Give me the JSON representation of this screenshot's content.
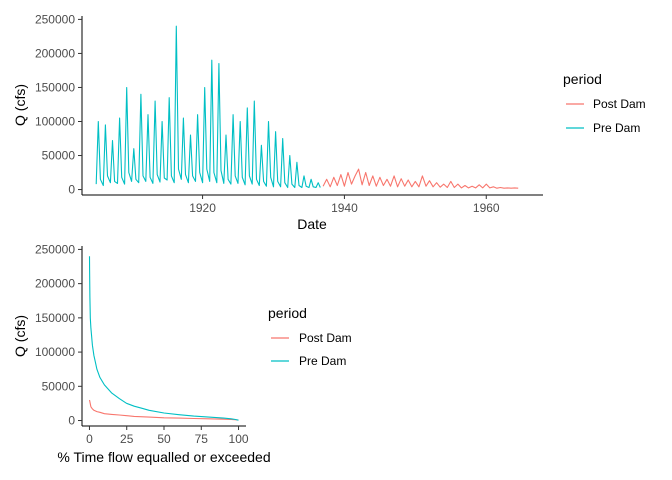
{
  "colors": {
    "post_dam": "#F8766D",
    "pre_dam": "#00BFC4"
  },
  "chart_data": [
    {
      "type": "line",
      "title": "",
      "xlabel": "Date",
      "ylabel": "Q (cfs)",
      "xlim": [
        1903,
        1968
      ],
      "ylim": [
        -8000,
        255000
      ],
      "x_ticks": [
        1920,
        1940,
        1960
      ],
      "x_tick_labels": [
        "1920",
        "1940",
        "1960"
      ],
      "y_ticks": [
        0,
        50000,
        100000,
        150000,
        200000,
        250000
      ],
      "y_tick_labels": [
        "0",
        "50000",
        "100000",
        "150000",
        "200000",
        "250000"
      ],
      "legend": {
        "title": "period",
        "position": "right",
        "entries": [
          "Post Dam",
          "Pre Dam"
        ]
      },
      "series": [
        {
          "name": "Pre Dam",
          "x": [
            1905.0,
            1905.3,
            1905.6,
            1906.0,
            1906.3,
            1906.6,
            1907.0,
            1907.3,
            1907.6,
            1908.0,
            1908.3,
            1908.6,
            1909.0,
            1909.3,
            1909.6,
            1910.0,
            1910.3,
            1910.6,
            1911.0,
            1911.3,
            1911.6,
            1912.0,
            1912.3,
            1912.6,
            1913.0,
            1913.3,
            1913.6,
            1914.0,
            1914.3,
            1914.6,
            1915.0,
            1915.3,
            1915.6,
            1916.0,
            1916.3,
            1916.6,
            1917.0,
            1917.3,
            1917.6,
            1918.0,
            1918.3,
            1918.6,
            1919.0,
            1919.3,
            1919.6,
            1920.0,
            1920.3,
            1920.6,
            1921.0,
            1921.3,
            1921.6,
            1922.0,
            1922.3,
            1922.6,
            1923.0,
            1923.3,
            1923.6,
            1924.0,
            1924.3,
            1924.6,
            1925.0,
            1925.3,
            1925.6,
            1926.0,
            1926.3,
            1926.6,
            1927.0,
            1927.3,
            1927.6,
            1928.0,
            1928.3,
            1928.6,
            1929.0,
            1929.3,
            1929.6,
            1930.0,
            1930.3,
            1930.6,
            1931.0,
            1931.3,
            1931.6,
            1932.0,
            1932.3,
            1932.6,
            1933.0,
            1933.3,
            1933.6,
            1934.0,
            1934.3,
            1934.6,
            1935.0,
            1935.3,
            1935.6,
            1936.0,
            1936.3,
            1936.6
          ],
          "values": [
            8000,
            100000,
            15000,
            6000,
            95000,
            20000,
            10000,
            72000,
            12000,
            9000,
            105000,
            18000,
            8000,
            150000,
            25000,
            12000,
            60000,
            15000,
            10000,
            140000,
            20000,
            12000,
            110000,
            18000,
            9000,
            130000,
            22000,
            11000,
            100000,
            17000,
            14000,
            135000,
            20000,
            10000,
            240000,
            30000,
            15000,
            105000,
            22000,
            10000,
            80000,
            20000,
            12000,
            110000,
            25000,
            10000,
            150000,
            30000,
            12000,
            190000,
            25000,
            10000,
            185000,
            28000,
            9000,
            80000,
            15000,
            8000,
            110000,
            20000,
            9000,
            100000,
            18000,
            7000,
            120000,
            20000,
            8000,
            130000,
            15000,
            6000,
            65000,
            12000,
            5000,
            100000,
            18000,
            4000,
            85000,
            12000,
            4000,
            75000,
            10000,
            3000,
            50000,
            8000,
            3000,
            40000,
            6000,
            3000,
            20000,
            5000,
            3000,
            15000,
            4000,
            3000,
            10000,
            3000
          ]
        },
        {
          "name": "Post Dam",
          "x": [
            1937.0,
            1937.5,
            1938.0,
            1938.5,
            1939.0,
            1939.5,
            1940.0,
            1940.5,
            1941.0,
            1941.5,
            1942.0,
            1942.5,
            1943.0,
            1943.5,
            1944.0,
            1944.5,
            1945.0,
            1945.5,
            1946.0,
            1946.5,
            1947.0,
            1947.5,
            1948.0,
            1948.5,
            1949.0,
            1949.5,
            1950.0,
            1950.5,
            1951.0,
            1951.5,
            1952.0,
            1952.5,
            1953.0,
            1953.5,
            1954.0,
            1954.5,
            1955.0,
            1955.5,
            1956.0,
            1956.5,
            1957.0,
            1957.5,
            1958.0,
            1958.5,
            1959.0,
            1959.5,
            1960.0,
            1960.5,
            1961.0,
            1961.5,
            1962.0,
            1962.5,
            1963.0,
            1963.5,
            1964.0,
            1964.5
          ],
          "values": [
            5000,
            15000,
            4000,
            18000,
            6000,
            22000,
            5000,
            25000,
            8000,
            20000,
            30000,
            7000,
            25000,
            6000,
            20000,
            5000,
            18000,
            6000,
            15000,
            5000,
            20000,
            4000,
            16000,
            5000,
            14000,
            4000,
            12000,
            4000,
            20000,
            5000,
            13000,
            4000,
            10000,
            3500,
            8000,
            3000,
            12000,
            3000,
            8000,
            2500,
            6000,
            2500,
            5000,
            2500,
            7000,
            2500,
            8000,
            2500,
            4000,
            2000,
            3000,
            2000,
            2500,
            2000,
            2500,
            2000
          ]
        }
      ]
    },
    {
      "type": "line",
      "title": "",
      "xlabel": "% Time flow equalled or exceeded",
      "ylabel": "Q (cfs)",
      "xlim": [
        -5,
        105
      ],
      "ylim": [
        -8000,
        255000
      ],
      "x_ticks": [
        0,
        25,
        50,
        75,
        100
      ],
      "x_tick_labels": [
        "0",
        "25",
        "50",
        "75",
        "100"
      ],
      "y_ticks": [
        0,
        50000,
        100000,
        150000,
        200000,
        250000
      ],
      "y_tick_labels": [
        "0",
        "50000",
        "100000",
        "150000",
        "200000",
        "250000"
      ],
      "legend": {
        "title": "period",
        "position": "right",
        "entries": [
          "Post Dam",
          "Pre Dam"
        ]
      },
      "series": [
        {
          "name": "Post Dam",
          "x": [
            0,
            0.2,
            0.5,
            1,
            2,
            3,
            5,
            7,
            10,
            15,
            20,
            25,
            30,
            40,
            50,
            60,
            70,
            80,
            90,
            95,
            100
          ],
          "values": [
            30000,
            28000,
            25000,
            20000,
            17000,
            15000,
            13000,
            12000,
            10000,
            9000,
            8000,
            7000,
            6000,
            5000,
            4000,
            3500,
            3000,
            2500,
            2000,
            1500,
            800
          ]
        },
        {
          "name": "Pre Dam",
          "x": [
            0,
            0.1,
            0.3,
            0.6,
            1,
            2,
            3,
            4,
            5,
            7,
            10,
            15,
            20,
            25,
            30,
            35,
            40,
            50,
            60,
            70,
            80,
            90,
            95,
            98,
            100
          ],
          "values": [
            240000,
            220000,
            180000,
            150000,
            135000,
            110000,
            95000,
            85000,
            75000,
            63000,
            52000,
            40000,
            32000,
            25000,
            21000,
            18000,
            15000,
            11000,
            8500,
            6500,
            5000,
            3500,
            2500,
            1500,
            500
          ]
        }
      ]
    }
  ]
}
